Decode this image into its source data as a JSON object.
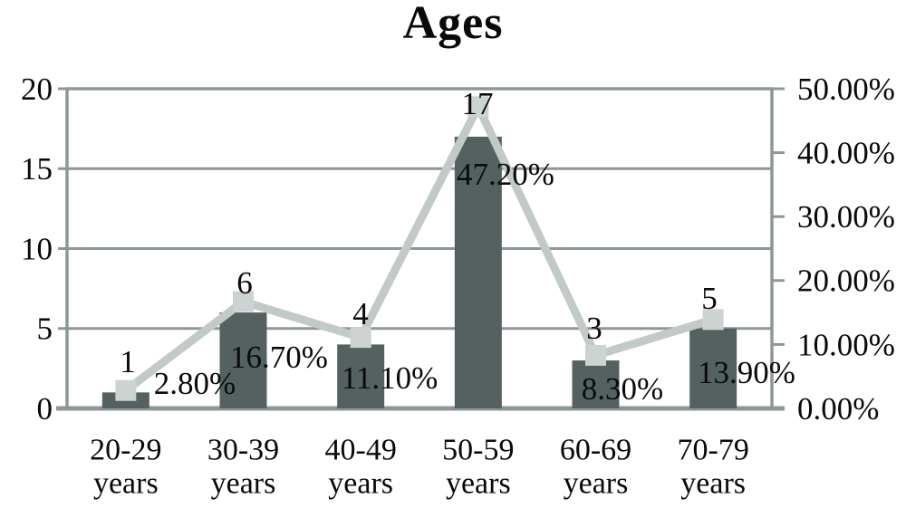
{
  "chart_data": {
    "type": "combo-bar-line",
    "title": "Ages",
    "categories": [
      [
        "20-29",
        "years"
      ],
      [
        "30-39",
        "years"
      ],
      [
        "40-49",
        "years"
      ],
      [
        "50-59",
        "years"
      ],
      [
        "60-69",
        "years"
      ],
      [
        "70-79",
        "years"
      ]
    ],
    "series": [
      {
        "name": "count",
        "type": "bar",
        "axis": "left",
        "values": [
          1,
          6,
          4,
          17,
          3,
          5
        ],
        "labels": [
          "1",
          "6",
          "4",
          "17",
          "3",
          "5"
        ],
        "color": "#556161"
      },
      {
        "name": "percent",
        "type": "line",
        "axis": "right",
        "values": [
          2.8,
          16.7,
          11.1,
          47.2,
          8.3,
          13.9
        ],
        "labels": [
          "2.80%",
          "16.70%",
          "11.10%",
          "47.20%",
          "8.30%",
          "13.90%"
        ],
        "color": "#c1cac7",
        "marker": "square",
        "marker_color": "#ccd3d0"
      }
    ],
    "left_axis": {
      "min": 0,
      "max": 20,
      "tick_labels": [
        "20",
        "15",
        "10",
        "5",
        "0"
      ]
    },
    "right_axis": {
      "min": 0,
      "max": 50,
      "tick_labels": [
        "50.00%",
        "40.00%",
        "30.00%",
        "20.00%",
        "10.00%",
        "0.00%"
      ]
    },
    "grid": "horizontal",
    "grid_values_left_axis": [
      5,
      10,
      15
    ],
    "grid_color": "#8d9798",
    "plot_background": "#ffffff",
    "legend": "none",
    "text_color": "#0a0a0a"
  }
}
